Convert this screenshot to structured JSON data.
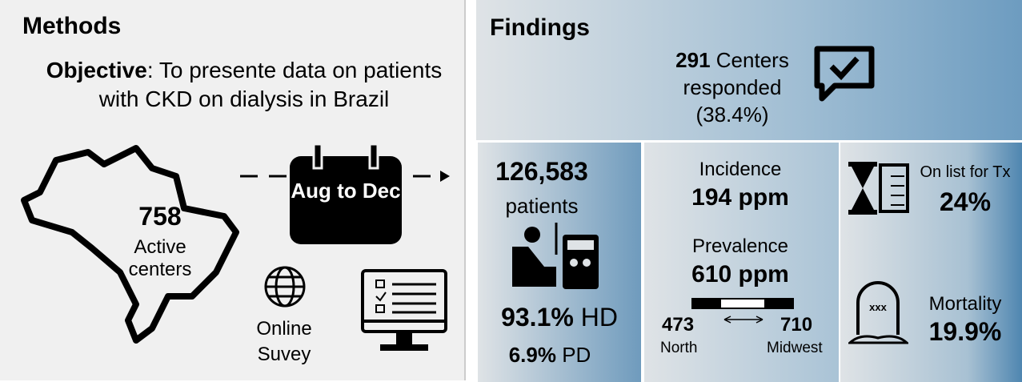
{
  "methods": {
    "title": "Methods",
    "objective_label": "Objective",
    "objective_text": ": To presente data on patients with CKD on dialysis in Brazil",
    "centers_value": "758",
    "centers_label": "Active centers",
    "period": "Aug to Dec",
    "survey": "Online Suvey"
  },
  "findings": {
    "title": "Findings",
    "responded_value": "291",
    "responded_label": "Centers responded",
    "responded_pct": "(38.4%)",
    "patients_value": "126,583",
    "patients_label": "patients",
    "hd_value": "93.1%",
    "hd_label": "HD",
    "pd_value": "6.9%",
    "pd_label": "PD",
    "incidence_label": "Incidence",
    "incidence_value": "194 ppm",
    "prevalence_label": "Prevalence",
    "prevalence_value": "610 ppm",
    "range_low": "473",
    "range_low_label": "North",
    "range_high": "710",
    "range_high_label": "Midwest",
    "transplant_label": "On list for Tx",
    "transplant_value": "24%",
    "mortality_label": "Mortality",
    "mortality_value": "19.9%"
  }
}
